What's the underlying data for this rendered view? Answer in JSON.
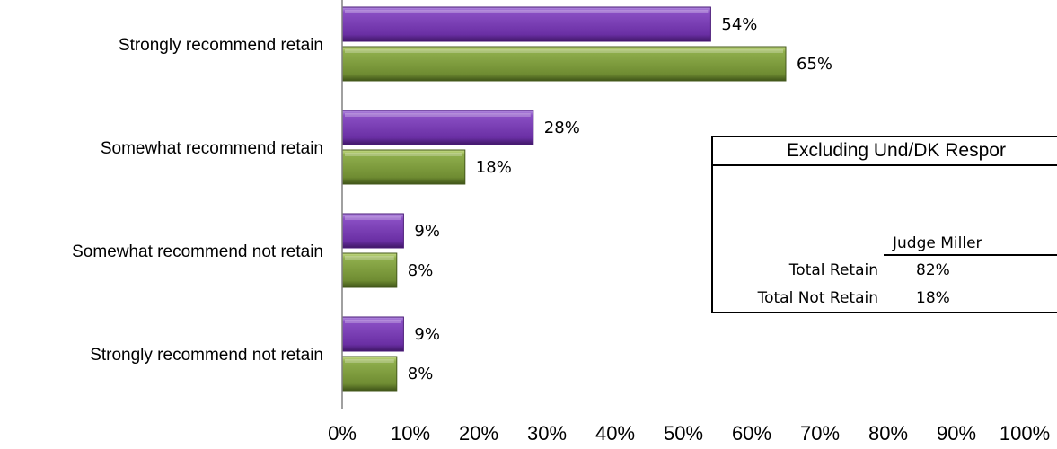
{
  "chart_data": {
    "type": "bar",
    "orientation": "horizontal",
    "categories": [
      "Strongly recommend retain",
      "Somewhat recommend retain",
      "Somewhat recommend not retain",
      "Strongly recommend not retain"
    ],
    "series": [
      {
        "values": [
          54,
          28,
          9,
          9
        ],
        "color": "#7b3fb0"
      },
      {
        "values": [
          65,
          18,
          8,
          8
        ],
        "color": "#7a9a3a"
      }
    ],
    "value_labels": [
      [
        "54%",
        "28%",
        "9%",
        "9%"
      ],
      [
        "65%",
        "18%",
        "8%",
        "8%"
      ]
    ],
    "x_ticks": [
      "0%",
      "10%",
      "20%",
      "30%",
      "40%",
      "50%",
      "60%",
      "70%",
      "80%",
      "90%",
      "100%"
    ],
    "xlim": [
      0,
      100
    ],
    "grid": false
  },
  "inset_table": {
    "title": "Excluding Und/DK Respor",
    "column_header": "Judge Miller",
    "rows": [
      {
        "label": "Total Retain",
        "value": "82%"
      },
      {
        "label": "Total Not Retain",
        "value": "18%"
      }
    ]
  }
}
